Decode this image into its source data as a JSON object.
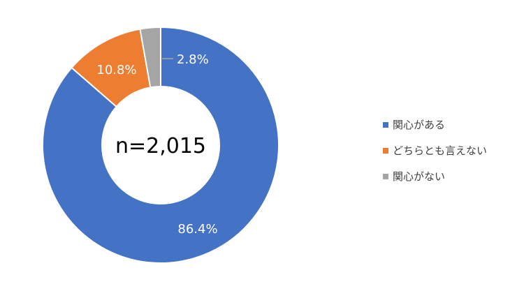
{
  "chart_data": {
    "type": "donut",
    "center_text": "n=2,015",
    "slices": [
      {
        "label": "関心がある",
        "value": 86.4,
        "display": "86.4%",
        "color": "#4472C4"
      },
      {
        "label": "どちらとも言えない",
        "value": 10.8,
        "display": "10.8%",
        "color": "#ED7D31"
      },
      {
        "label": "関心がない",
        "value": 2.8,
        "display": "2.8%",
        "color": "#A5A5A5"
      }
    ],
    "legend_position": "right"
  }
}
